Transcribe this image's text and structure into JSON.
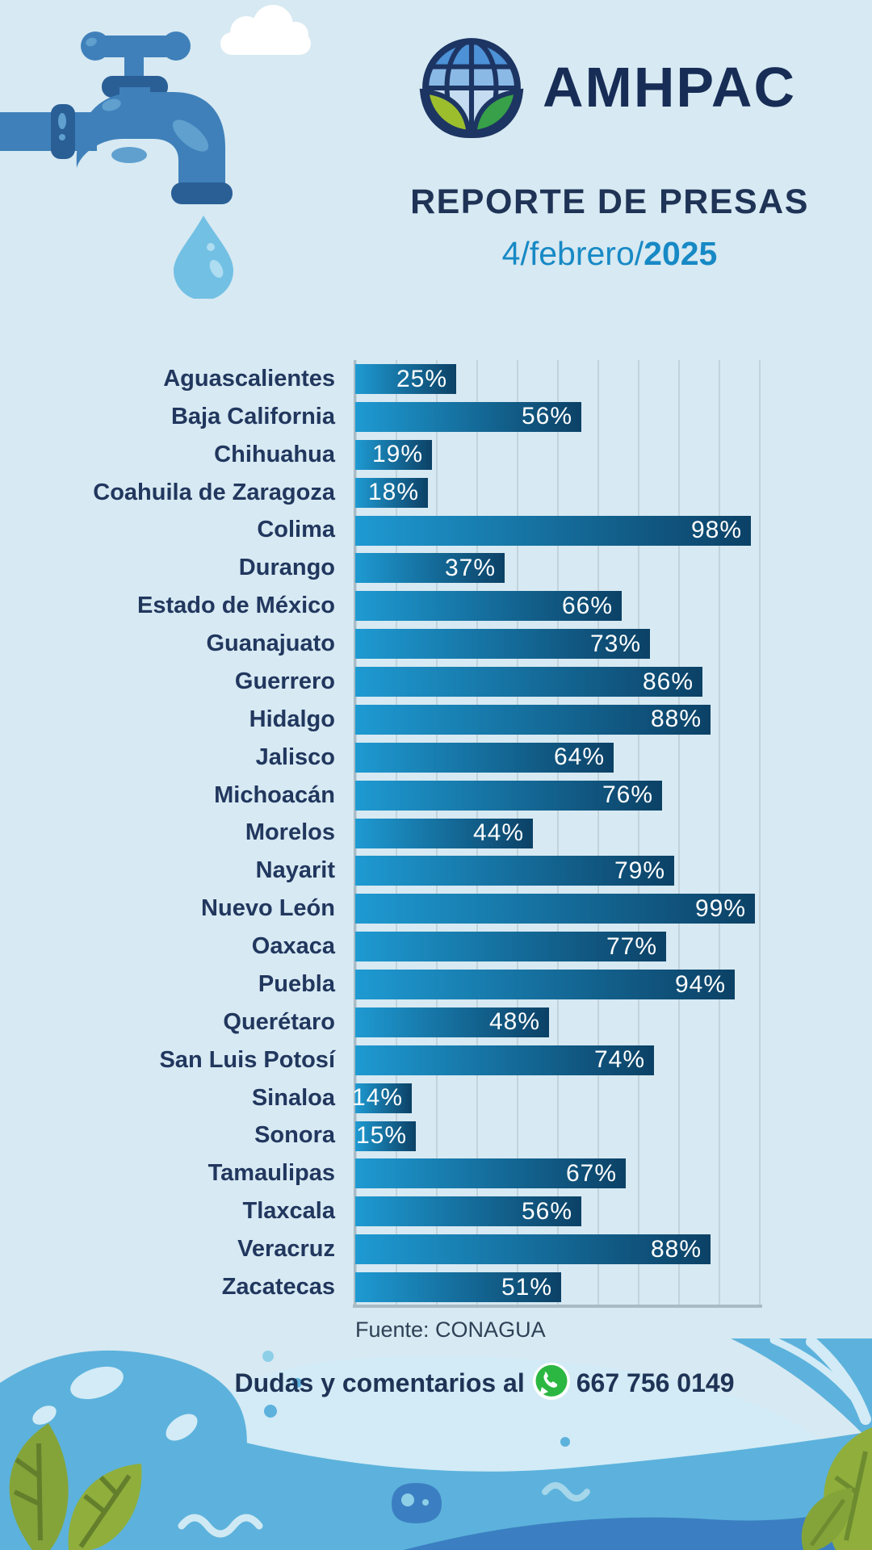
{
  "header": {
    "brand": "AMHPAC",
    "title": "REPORTE DE PRESAS",
    "date_prefix": "4/febrero/",
    "date_year": "2025"
  },
  "chart_data": {
    "type": "bar",
    "orientation": "horizontal",
    "title": "REPORTE DE PRESAS",
    "unit": "percent",
    "xlim": [
      0,
      100
    ],
    "gridline_interval_percent": 10,
    "value_label_format": "{value}%",
    "categories": [
      "Aguascalientes",
      "Baja California",
      "Chihuahua",
      "Coahuila de Zaragoza",
      "Colima",
      "Durango",
      "Estado de México",
      "Guanajuato",
      "Guerrero",
      "Hidalgo",
      "Jalisco",
      "Michoacán",
      "Morelos",
      "Nayarit",
      "Nuevo León",
      "Oaxaca",
      "Puebla",
      "Querétaro",
      "San Luis Potosí",
      "Sinaloa",
      "Sonora",
      "Tamaulipas",
      "Tlaxcala",
      "Veracruz",
      "Zacatecas"
    ],
    "values": [
      25,
      56,
      19,
      18,
      98,
      37,
      66,
      73,
      86,
      88,
      64,
      76,
      44,
      79,
      99,
      77,
      94,
      48,
      74,
      14,
      15,
      67,
      56,
      88,
      51
    ],
    "source": "Fuente: CONAGUA"
  },
  "footer": {
    "contact_text": "Dudas y comentarios al",
    "phone": "667 756 0149"
  },
  "colors": {
    "background": "#d7e9f2",
    "navy_text": "#1e3459",
    "date_blue": "#1789c5",
    "bar_gradient_start": "#1e9ad2",
    "bar_gradient_end": "#0c4166",
    "gridline": "#c2d3db",
    "axis": "#a9bcc6",
    "whatsapp_green": "#2cb742",
    "faucet_blue": "#3f80ba",
    "wave_blue": "#5cb2dc",
    "wave_dark_blue": "#3b7fc2",
    "leaf_green": "#84a43a"
  }
}
